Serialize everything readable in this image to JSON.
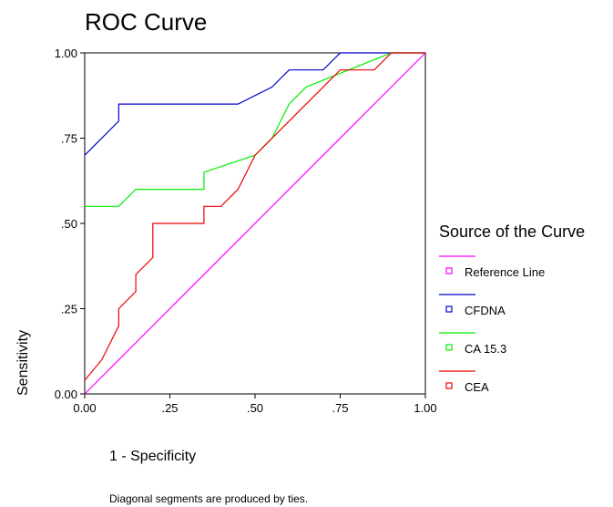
{
  "chart_data": {
    "type": "line",
    "title": "ROC Curve",
    "xlabel": "1 - Specificity",
    "ylabel": "Sensitivity",
    "xlim": [
      0,
      1
    ],
    "ylim": [
      0,
      1
    ],
    "x_ticks": [
      0,
      0.25,
      0.5,
      0.75,
      1
    ],
    "x_tick_labels": [
      "0.00",
      ".25",
      ".50",
      ".75",
      "1.00"
    ],
    "y_ticks": [
      0,
      0.25,
      0.5,
      0.75,
      1
    ],
    "y_tick_labels": [
      "0.00",
      ".25",
      ".50",
      ".75",
      "1.00"
    ],
    "grid": false,
    "legend": {
      "title": "Source of the Curve",
      "position": "right"
    },
    "footnote": "Diagonal segments are produced by ties.",
    "series": [
      {
        "name": "Reference Line",
        "color": "#ff00ff",
        "points": [
          [
            0,
            0
          ],
          [
            1,
            1
          ]
        ]
      },
      {
        "name": "CFDNA",
        "color": "#0000cc",
        "points": [
          [
            0,
            0.7
          ],
          [
            0,
            0.7
          ],
          [
            0.1,
            0.8
          ],
          [
            0.1,
            0.85
          ],
          [
            0.45,
            0.85
          ],
          [
            0.55,
            0.9
          ],
          [
            0.6,
            0.95
          ],
          [
            0.7,
            0.95
          ],
          [
            0.75,
            1.0
          ],
          [
            1.0,
            1.0
          ]
        ]
      },
      {
        "name": "CA 15.3",
        "color": "#00ee00",
        "points": [
          [
            0,
            0.55
          ],
          [
            0.1,
            0.55
          ],
          [
            0.15,
            0.6
          ],
          [
            0.35,
            0.6
          ],
          [
            0.35,
            0.65
          ],
          [
            0.5,
            0.7
          ],
          [
            0.55,
            0.75
          ],
          [
            0.6,
            0.85
          ],
          [
            0.65,
            0.9
          ],
          [
            0.9,
            1.0
          ],
          [
            1.0,
            1.0
          ]
        ]
      },
      {
        "name": "CEA",
        "color": "#ee0000",
        "points": [
          [
            0,
            0.04
          ],
          [
            0.05,
            0.1
          ],
          [
            0.1,
            0.2
          ],
          [
            0.1,
            0.25
          ],
          [
            0.15,
            0.3
          ],
          [
            0.15,
            0.35
          ],
          [
            0.2,
            0.4
          ],
          [
            0.2,
            0.5
          ],
          [
            0.35,
            0.5
          ],
          [
            0.35,
            0.55
          ],
          [
            0.4,
            0.55
          ],
          [
            0.45,
            0.6
          ],
          [
            0.5,
            0.7
          ],
          [
            0.6,
            0.8
          ],
          [
            0.65,
            0.85
          ],
          [
            0.75,
            0.95
          ],
          [
            0.85,
            0.95
          ],
          [
            0.9,
            1.0
          ],
          [
            1.0,
            1.0
          ]
        ]
      }
    ]
  }
}
